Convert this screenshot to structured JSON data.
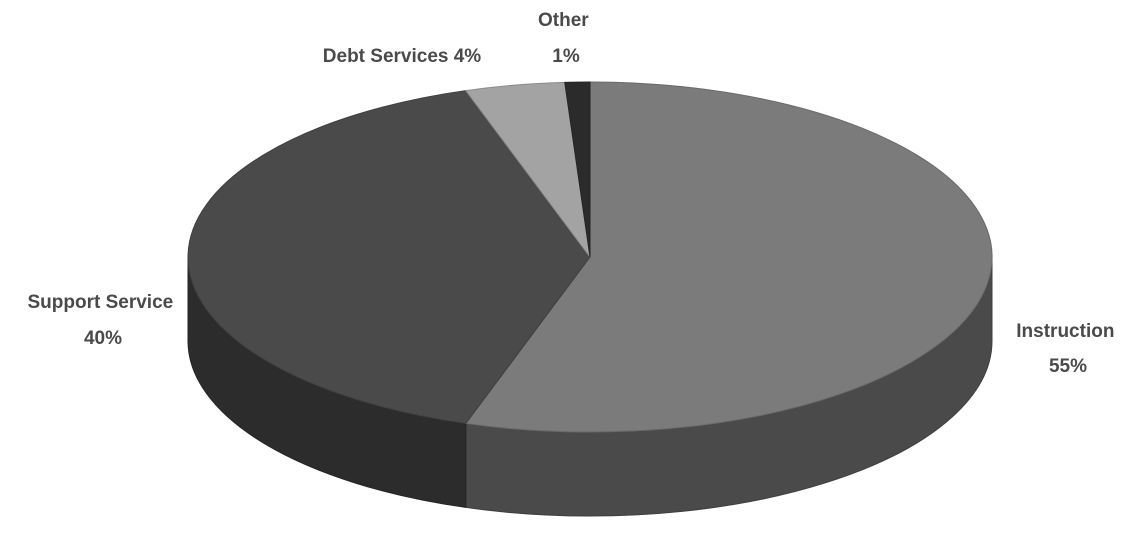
{
  "chart_data": {
    "type": "pie",
    "three_d": true,
    "slices": [
      {
        "name": "Instruction",
        "value": 55,
        "label_line1": "Instruction",
        "label_line2": "55%",
        "color": "#7b7b7b"
      },
      {
        "name": "Support Service",
        "value": 40,
        "label_line1": "Support Service",
        "label_line2": "40%",
        "color": "#4a4a4a"
      },
      {
        "name": "Debt Services",
        "value": 4,
        "label_line1": "Debt Services 4%",
        "label_line2": "",
        "color": "#a3a3a3"
      },
      {
        "name": "Other",
        "value": 1,
        "label_line1": "Other",
        "label_line2": "1%",
        "color": "#2b2b2b"
      }
    ]
  }
}
